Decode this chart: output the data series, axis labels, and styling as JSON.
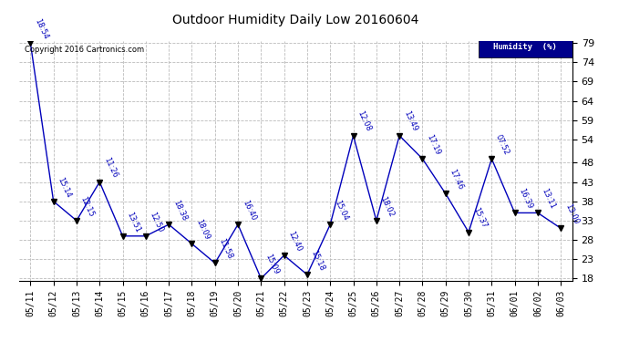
{
  "title": "Outdoor Humidity Daily Low 20160604",
  "copyright": "Copyright 2016 Cartronics.com",
  "legend_label": "Humidity  (%)",
  "x_labels": [
    "05/11",
    "05/12",
    "05/13",
    "05/14",
    "05/15",
    "05/16",
    "05/17",
    "05/18",
    "05/19",
    "05/20",
    "05/21",
    "05/22",
    "05/23",
    "05/24",
    "05/25",
    "05/26",
    "05/27",
    "05/28",
    "05/29",
    "05/30",
    "05/31",
    "06/01",
    "06/02",
    "06/03"
  ],
  "y_values": [
    79,
    38,
    33,
    43,
    29,
    29,
    32,
    27,
    22,
    32,
    18,
    24,
    19,
    32,
    55,
    33,
    55,
    49,
    40,
    30,
    49,
    35,
    35,
    31
  ],
  "point_labels": [
    "18:54",
    "15:14",
    "12:15",
    "11:26",
    "13:51",
    "12:50",
    "18:38",
    "18:09",
    "11:58",
    "16:40",
    "15:09",
    "12:40",
    "15:18",
    "15:04",
    "12:08",
    "18:02",
    "13:49",
    "17:19",
    "17:46",
    "15:37",
    "07:52",
    "16:39",
    "13:11",
    "13:00"
  ],
  "line_color": "#0000bb",
  "marker_color": "#000000",
  "label_color": "#0000bb",
  "background_color": "#ffffff",
  "grid_color": "#bbbbbb",
  "ylim_min": 18,
  "ylim_max": 79,
  "yticks": [
    18,
    23,
    28,
    33,
    38,
    43,
    48,
    54,
    59,
    64,
    69,
    74,
    79
  ],
  "legend_bg": "#00008B",
  "legend_text_color": "#ffffff",
  "figwidth": 6.9,
  "figheight": 3.75,
  "dpi": 100
}
